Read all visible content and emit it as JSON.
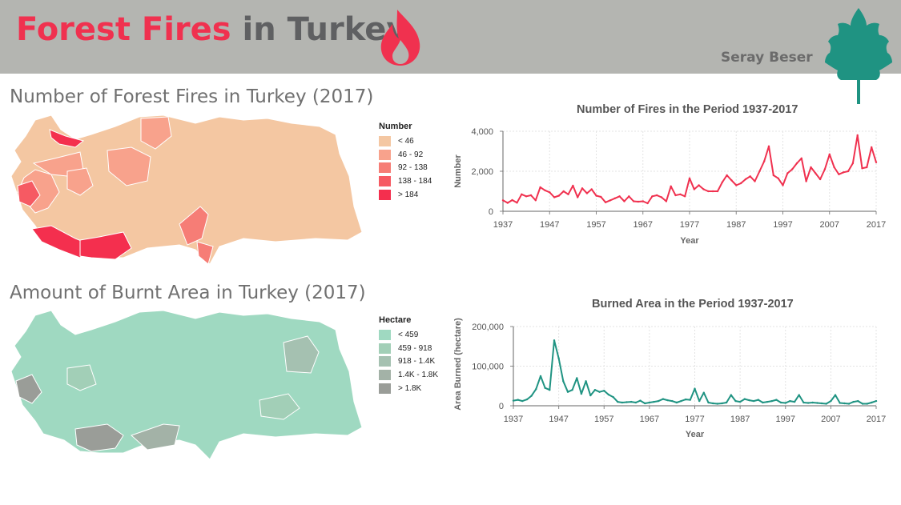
{
  "header": {
    "title_part1": "Forest Fires",
    "title_part2": "in Turkey",
    "author": "Seray Beser",
    "flame_icon_color": "#f0314f",
    "tree_icon_color": "#1f9382",
    "background": "#b4b5b1"
  },
  "maps": [
    {
      "title": "Number of Forest Fires in Turkey (2017)",
      "legend_title": "Number",
      "legend": [
        {
          "label": "< 46",
          "color": "#f4c7a2"
        },
        {
          "label": "46 - 92",
          "color": "#f8a28c"
        },
        {
          "label": "92 - 138",
          "color": "#f67d76"
        },
        {
          "label": "138 - 184",
          "color": "#f65a63"
        },
        {
          "label": "> 184",
          "color": "#f42f4e"
        }
      ]
    },
    {
      "title": "Amount of Burnt Area in Turkey (2017)",
      "legend_title": "Hectare",
      "legend": [
        {
          "label": "< 459",
          "color": "#9fd9c1"
        },
        {
          "label": "459 - 918",
          "color": "#a2cfb7"
        },
        {
          "label": "918 - 1.4K",
          "color": "#a5c1b1"
        },
        {
          "label": "1.4K - 1.8K",
          "color": "#a3b2a7"
        },
        {
          "label": "> 1.8K",
          "color": "#9a9d98"
        }
      ]
    }
  ],
  "chart_data": [
    {
      "type": "line",
      "title": "Number of Fires in the Period 1937-2017",
      "xlabel": "Year",
      "ylabel": "Number",
      "color": "#f0314f",
      "xlim": [
        1937,
        2017
      ],
      "ylim": [
        0,
        4000
      ],
      "xticks": [
        "1937",
        "1947",
        "1957",
        "1967",
        "1977",
        "1987",
        "1997",
        "2007",
        "2017"
      ],
      "yticks": [
        "0",
        "2,000",
        "4,000"
      ],
      "x": [
        1937,
        1938,
        1939,
        1940,
        1941,
        1942,
        1943,
        1944,
        1945,
        1946,
        1947,
        1948,
        1949,
        1950,
        1951,
        1952,
        1953,
        1954,
        1955,
        1956,
        1957,
        1958,
        1959,
        1960,
        1961,
        1962,
        1963,
        1964,
        1965,
        1966,
        1967,
        1968,
        1969,
        1970,
        1971,
        1972,
        1973,
        1974,
        1975,
        1976,
        1977,
        1978,
        1979,
        1980,
        1981,
        1982,
        1983,
        1984,
        1985,
        1986,
        1987,
        1988,
        1989,
        1990,
        1991,
        1992,
        1993,
        1994,
        1995,
        1996,
        1997,
        1998,
        1999,
        2000,
        2001,
        2002,
        2003,
        2004,
        2005,
        2006,
        2007,
        2008,
        2009,
        2010,
        2011,
        2012,
        2013,
        2014,
        2015,
        2016,
        2017
      ],
      "values": [
        550,
        420,
        560,
        430,
        850,
        750,
        800,
        550,
        1200,
        1050,
        950,
        700,
        780,
        1000,
        850,
        1280,
        700,
        1150,
        900,
        1100,
        780,
        720,
        450,
        550,
        650,
        750,
        500,
        750,
        500,
        480,
        500,
        400,
        750,
        800,
        700,
        500,
        1250,
        800,
        850,
        750,
        1650,
        1100,
        1300,
        1100,
        1000,
        1000,
        1000,
        1450,
        1800,
        1550,
        1300,
        1400,
        1600,
        1750,
        1500,
        2000,
        2500,
        3250,
        1800,
        1650,
        1300,
        1900,
        2100,
        2400,
        2650,
        1500,
        2200,
        1900,
        1600,
        2100,
        2850,
        2200,
        1850,
        1950,
        2000,
        2400,
        3800,
        2150,
        2200,
        3200,
        2450
      ]
    },
    {
      "type": "line",
      "title": "Burned Area in the Period 1937-2017",
      "xlabel": "Year",
      "ylabel": "Area Burned (hectare)",
      "color": "#1f9382",
      "xlim": [
        1937,
        2017
      ],
      "ylim": [
        0,
        200000
      ],
      "xticks": [
        "1937",
        "1947",
        "1957",
        "1967",
        "1977",
        "1987",
        "1997",
        "2007",
        "2017"
      ],
      "yticks": [
        "0",
        "100,000",
        "200,000"
      ],
      "x": [
        1937,
        1938,
        1939,
        1940,
        1941,
        1942,
        1943,
        1944,
        1945,
        1946,
        1947,
        1948,
        1949,
        1950,
        1951,
        1952,
        1953,
        1954,
        1955,
        1956,
        1957,
        1958,
        1959,
        1960,
        1961,
        1962,
        1963,
        1964,
        1965,
        1966,
        1967,
        1968,
        1969,
        1970,
        1971,
        1972,
        1973,
        1974,
        1975,
        1976,
        1977,
        1978,
        1979,
        1980,
        1981,
        1982,
        1983,
        1984,
        1985,
        1986,
        1987,
        1988,
        1989,
        1990,
        1991,
        1992,
        1993,
        1994,
        1995,
        1996,
        1997,
        1998,
        1999,
        2000,
        2001,
        2002,
        2003,
        2004,
        2005,
        2006,
        2007,
        2008,
        2009,
        2010,
        2011,
        2012,
        2013,
        2014,
        2015,
        2016,
        2017
      ],
      "values": [
        13000,
        15000,
        12000,
        16000,
        25000,
        42000,
        75000,
        45000,
        40000,
        165000,
        120000,
        62000,
        35000,
        40000,
        70000,
        30000,
        62000,
        26000,
        40000,
        35000,
        38000,
        28000,
        22000,
        10000,
        8000,
        9000,
        10000,
        8000,
        13000,
        6000,
        8000,
        10000,
        12000,
        17000,
        14000,
        12000,
        8000,
        12000,
        16000,
        15000,
        43000,
        12000,
        33000,
        8000,
        6000,
        5000,
        6000,
        8000,
        27000,
        12000,
        10000,
        17000,
        14000,
        12000,
        15000,
        8000,
        10000,
        12000,
        15000,
        8000,
        7000,
        12000,
        10000,
        27000,
        8000,
        7000,
        8000,
        7000,
        6000,
        5000,
        12000,
        27000,
        7000,
        6000,
        5000,
        10000,
        12000,
        5000,
        5000,
        8000,
        12000
      ]
    }
  ]
}
